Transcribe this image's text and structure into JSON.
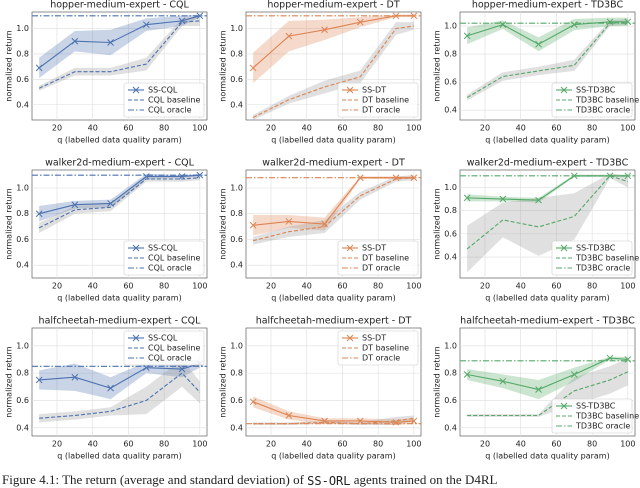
{
  "chart_data": [
    {
      "type": "line",
      "title": "hopper-medium-expert - CQL",
      "xlabel": "q (labelled data quality param)",
      "ylabel": "normalized return",
      "x": [
        10,
        30,
        50,
        70,
        90,
        100
      ],
      "xlim": [
        6,
        104
      ],
      "xticks": [
        20,
        40,
        60,
        80,
        100
      ],
      "ylim": [
        0.28,
        1.13
      ],
      "yticks": [
        0.4,
        0.6,
        0.8,
        {
          "value": 1,
          "label": "1.0"
        }
      ],
      "grid": true,
      "legend": "lower right",
      "series": [
        {
          "name": "SS-CQL",
          "color": "#4c72b0",
          "values": [
            0.69,
            0.9,
            0.89,
            1.03,
            1.06,
            1.1
          ],
          "std": [
            0.08,
            0.08,
            0.1,
            0.05,
            0.04,
            0.01
          ]
        },
        {
          "name": "CQL baseline",
          "color": "#4c72b0",
          "values": [
            0.53,
            0.66,
            0.66,
            0.72,
            1.05,
            1.06
          ],
          "std": [
            0.02,
            0.03,
            0.03,
            0.05,
            0.03,
            0.04
          ]
        },
        {
          "name": "CQL oracle",
          "color": "#4c72b0",
          "value": 1.1
        }
      ]
    },
    {
      "type": "line",
      "title": "hopper-medium-expert - DT",
      "xlabel": "q (labelled data quality param)",
      "ylabel": "normalized return",
      "x": [
        10,
        30,
        50,
        70,
        90,
        100
      ],
      "xlim": [
        6,
        104
      ],
      "xticks": [
        20,
        40,
        60,
        80,
        100
      ],
      "ylim": [
        0.28,
        1.13
      ],
      "yticks": [
        0.4,
        0.6,
        0.8,
        {
          "value": 1,
          "label": "1.0"
        }
      ],
      "grid": true,
      "legend": "lower right",
      "series": [
        {
          "name": "SS-DT",
          "color": "#dd8452",
          "values": [
            0.69,
            0.94,
            0.99,
            1.05,
            1.1,
            1.1
          ],
          "std": [
            0.12,
            0.12,
            0.08,
            0.04,
            0.01,
            0.01
          ]
        },
        {
          "name": "DT baseline",
          "color": "#dd8452",
          "values": [
            0.3,
            0.44,
            0.54,
            0.62,
            1.0,
            1.02
          ],
          "std": [
            0.02,
            0.03,
            0.05,
            0.05,
            0.05,
            0.03
          ]
        },
        {
          "name": "DT oracle",
          "color": "#dd8452",
          "value": 1.1
        }
      ]
    },
    {
      "type": "line",
      "title": "hopper-medium-expert - TD3BC",
      "xlabel": "q (labelled data quality param)",
      "ylabel": "normalized return",
      "x": [
        10,
        30,
        50,
        70,
        90,
        100
      ],
      "xlim": [
        6,
        104
      ],
      "xticks": [
        20,
        40,
        60,
        80,
        100
      ],
      "ylim": [
        0.33,
        1.1
      ],
      "yticks": [
        0.4,
        0.6,
        0.8,
        {
          "value": 1,
          "label": "1.0"
        }
      ],
      "grid": true,
      "legend": "lower right",
      "series": [
        {
          "name": "SS-TD3BC",
          "color": "#55a868",
          "values": [
            0.93,
            1.01,
            0.87,
            1.01,
            1.03,
            1.03
          ],
          "std": [
            0.06,
            0.03,
            0.05,
            0.04,
            0.03,
            0.03
          ]
        },
        {
          "name": "TD3BC baseline",
          "color": "#55a868",
          "values": [
            0.49,
            0.64,
            0.68,
            0.72,
            1.02,
            1.03
          ],
          "std": [
            0.02,
            0.03,
            0.03,
            0.04,
            0.02,
            0.02
          ]
        },
        {
          "name": "TD3BC oracle",
          "color": "#55a868",
          "value": 1.02
        }
      ]
    },
    {
      "type": "line",
      "title": "walker2d-medium-expert - CQL",
      "xlabel": "q (labelled data quality param)",
      "ylabel": "normalized return",
      "x": [
        10,
        30,
        50,
        70,
        90,
        100
      ],
      "xlim": [
        6,
        104
      ],
      "xticks": [
        20,
        40,
        60,
        80,
        100
      ],
      "ylim": [
        0.3,
        1.14
      ],
      "yticks": [
        0.4,
        0.6,
        0.8,
        {
          "value": 1,
          "label": "1.0"
        }
      ],
      "grid": true,
      "legend": "lower right",
      "series": [
        {
          "name": "SS-CQL",
          "color": "#4c72b0",
          "values": [
            0.8,
            0.87,
            0.88,
            1.09,
            1.09,
            1.1
          ],
          "std": [
            0.06,
            0.03,
            0.03,
            0.02,
            0.01,
            0.01
          ]
        },
        {
          "name": "CQL baseline",
          "color": "#4c72b0",
          "values": [
            0.69,
            0.83,
            0.85,
            1.07,
            1.07,
            1.08
          ],
          "std": [
            0.04,
            0.03,
            0.03,
            0.02,
            0.02,
            0.02
          ]
        },
        {
          "name": "CQL oracle",
          "color": "#4c72b0",
          "value": 1.1
        }
      ]
    },
    {
      "type": "line",
      "title": "walker2d-medium-expert - DT",
      "xlabel": "q (labelled data quality param)",
      "ylabel": "normalized return",
      "x": [
        10,
        30,
        50,
        70,
        90,
        100
      ],
      "xlim": [
        6,
        104
      ],
      "xticks": [
        20,
        40,
        60,
        80,
        100
      ],
      "ylim": [
        0.3,
        1.14
      ],
      "yticks": [
        0.4,
        0.6,
        0.8,
        {
          "value": 1,
          "label": "1.0"
        }
      ],
      "grid": true,
      "legend": "lower right",
      "series": [
        {
          "name": "SS-DT",
          "color": "#dd8452",
          "values": [
            0.71,
            0.74,
            0.72,
            1.08,
            1.08,
            1.08
          ],
          "std": [
            0.08,
            0.05,
            0.05,
            0.01,
            0.01,
            0.01
          ]
        },
        {
          "name": "DT baseline",
          "color": "#dd8452",
          "values": [
            0.59,
            0.66,
            0.7,
            0.94,
            1.07,
            1.08
          ],
          "std": [
            0.03,
            0.04,
            0.05,
            0.03,
            0.02,
            0.02
          ]
        },
        {
          "name": "DT oracle",
          "color": "#dd8452",
          "value": 1.08
        }
      ]
    },
    {
      "type": "line",
      "title": "walker2d-medium-expert - TD3BC",
      "xlabel": "q (labelled data quality param)",
      "ylabel": "normalized return",
      "x": [
        10,
        30,
        50,
        70,
        90,
        100
      ],
      "xlim": [
        6,
        104
      ],
      "xticks": [
        20,
        40,
        60,
        80,
        100
      ],
      "ylim": [
        0.22,
        1.15
      ],
      "yticks": [
        0.4,
        0.6,
        0.8,
        {
          "value": 1,
          "label": "1.0"
        }
      ],
      "grid": true,
      "legend": "lower right",
      "series": [
        {
          "name": "SS-TD3BC",
          "color": "#55a868",
          "values": [
            0.91,
            0.9,
            0.89,
            1.1,
            1.1,
            1.1
          ],
          "std": [
            0.03,
            0.02,
            0.02,
            0.01,
            0.01,
            0.01
          ]
        },
        {
          "name": "TD3BC baseline",
          "color": "#55a868",
          "values": [
            0.47,
            0.72,
            0.66,
            0.75,
            1.1,
            1.05
          ],
          "std": [
            0.2,
            0.15,
            0.25,
            0.2,
            0.02,
            0.05
          ]
        },
        {
          "name": "TD3BC oracle",
          "color": "#55a868",
          "value": 1.1
        }
      ]
    },
    {
      "type": "line",
      "title": "halfcheetah-medium-expert - CQL",
      "xlabel": "q (labelled data quality param)",
      "ylabel": "normalized return",
      "x": [
        10,
        30,
        50,
        70,
        90,
        100
      ],
      "xlim": [
        6,
        104
      ],
      "xticks": [
        20,
        40,
        60,
        80,
        100
      ],
      "ylim": [
        0.34,
        1.13
      ],
      "yticks": [
        0.4,
        0.6,
        0.8,
        {
          "value": 1,
          "label": "1.0"
        }
      ],
      "grid": true,
      "legend": "upper right",
      "series": [
        {
          "name": "SS-CQL",
          "color": "#4c72b0",
          "values": [
            0.75,
            0.77,
            0.69,
            0.84,
            0.83,
            0.87
          ],
          "std": [
            0.07,
            0.1,
            0.08,
            0.04,
            0.06,
            0.03
          ]
        },
        {
          "name": "CQL baseline",
          "color": "#4c72b0",
          "values": [
            0.47,
            0.49,
            0.52,
            0.6,
            0.8,
            0.66
          ],
          "std": [
            0.03,
            0.03,
            0.03,
            0.1,
            0.1,
            0.08
          ]
        },
        {
          "name": "CQL oracle",
          "color": "#4c72b0",
          "value": 0.85
        }
      ]
    },
    {
      "type": "line",
      "title": "halfcheetah-medium-expert - DT",
      "xlabel": "q (labelled data quality param)",
      "ylabel": "normalized return",
      "x": [
        10,
        30,
        50,
        70,
        90,
        100
      ],
      "xlim": [
        6,
        104
      ],
      "xticks": [
        20,
        40,
        60,
        80,
        100
      ],
      "ylim": [
        0.34,
        1.13
      ],
      "yticks": [
        0.4,
        0.6,
        0.8,
        {
          "value": 1,
          "label": "1.0"
        }
      ],
      "grid": true,
      "legend": "upper right",
      "series": [
        {
          "name": "SS-DT",
          "color": "#dd8452",
          "values": [
            0.59,
            0.49,
            0.45,
            0.45,
            0.44,
            0.45
          ],
          "std": [
            0.04,
            0.03,
            0.02,
            0.02,
            0.02,
            0.02
          ]
        },
        {
          "name": "DT baseline",
          "color": "#dd8452",
          "values": [
            0.43,
            0.43,
            0.44,
            0.43,
            0.45,
            0.47
          ],
          "std": [
            0.01,
            0.01,
            0.01,
            0.01,
            0.03,
            0.02
          ]
        },
        {
          "name": "DT oracle",
          "color": "#dd8452",
          "value": 0.43
        }
      ]
    },
    {
      "type": "line",
      "title": "halfcheetah-medium-expert - TD3BC",
      "xlabel": "q (labelled data quality param)",
      "ylabel": "normalized return",
      "x": [
        10,
        30,
        50,
        70,
        90,
        100
      ],
      "xlim": [
        6,
        104
      ],
      "xticks": [
        20,
        40,
        60,
        80,
        100
      ],
      "ylim": [
        0.34,
        1.13
      ],
      "yticks": [
        0.4,
        0.6,
        0.8,
        {
          "value": 1,
          "label": "1.0"
        }
      ],
      "grid": true,
      "legend": "lower right",
      "series": [
        {
          "name": "SS-TD3BC",
          "color": "#55a868",
          "values": [
            0.79,
            0.74,
            0.68,
            0.79,
            0.91,
            0.9
          ],
          "std": [
            0.04,
            0.05,
            0.07,
            0.05,
            0.01,
            0.02
          ]
        },
        {
          "name": "TD3BC baseline",
          "color": "#55a868",
          "values": [
            0.49,
            0.49,
            0.49,
            0.67,
            0.75,
            0.81
          ],
          "std": [
            0.01,
            0.01,
            0.01,
            0.1,
            0.1,
            0.1
          ]
        },
        {
          "name": "TD3BC oracle",
          "color": "#55a868",
          "value": 0.89
        }
      ]
    }
  ],
  "caption": {
    "prefix": "Figure 4.1: The return (average and standard deviation) of ",
    "code": "SS-ORL",
    "suffix": " agents trained on the D4RL"
  }
}
